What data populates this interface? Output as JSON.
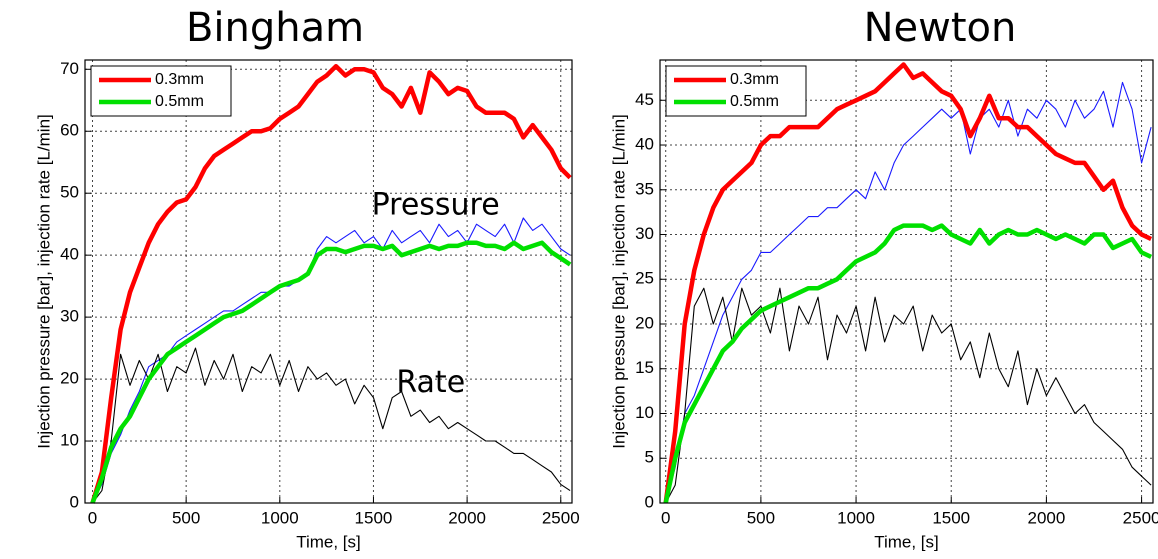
{
  "chart_data": [
    {
      "type": "line",
      "title": "Bingham",
      "xlabel": "Time, [s]",
      "ylabel": "Injection pressure [bar], injection rate [L/min]",
      "xlim": [
        -40,
        2560
      ],
      "ylim": [
        0,
        71.5
      ],
      "xticks": [
        0,
        500,
        1000,
        1500,
        2000,
        2500
      ],
      "yticks": [
        0,
        10,
        20,
        30,
        40,
        50,
        60,
        70
      ],
      "grid": true,
      "legend": "upper-left",
      "x": [
        0,
        50,
        100,
        150,
        200,
        250,
        300,
        350,
        400,
        450,
        500,
        550,
        600,
        650,
        700,
        750,
        800,
        850,
        900,
        950,
        1000,
        1050,
        1100,
        1150,
        1200,
        1250,
        1300,
        1350,
        1400,
        1450,
        1500,
        1550,
        1600,
        1650,
        1700,
        1750,
        1800,
        1850,
        1900,
        1950,
        2000,
        2050,
        2100,
        2150,
        2200,
        2250,
        2300,
        2350,
        2400,
        2450,
        2500,
        2550
      ],
      "series": [
        {
          "name": "0.3mm",
          "color": "#ff0000",
          "values": [
            0,
            5,
            17,
            28,
            34,
            38,
            42,
            45,
            47,
            48.5,
            49,
            51,
            54,
            56,
            57,
            58,
            59,
            60,
            60,
            60.5,
            62,
            63,
            64,
            66,
            68,
            69,
            70.5,
            69,
            70,
            70,
            69.5,
            67,
            66,
            64,
            67,
            63,
            69.5,
            68,
            66,
            67,
            66.5,
            64,
            63,
            63,
            63,
            62,
            59,
            61,
            59,
            57,
            54,
            52.5
          ]
        },
        {
          "name": "0.5mm",
          "color": "#00e000",
          "values": [
            0,
            4,
            9,
            12,
            14,
            17,
            20,
            22,
            24,
            25,
            26,
            27,
            28,
            29,
            30,
            30.5,
            31,
            32,
            33,
            34,
            35,
            35.5,
            36,
            37,
            40,
            41,
            41,
            40.5,
            41,
            41.5,
            41.5,
            41,
            41.5,
            40,
            40.5,
            41,
            41.5,
            41,
            41.5,
            41.5,
            42,
            42,
            41.5,
            41.5,
            41,
            42,
            41,
            41.5,
            42,
            40.5,
            39.5,
            38.5
          ]
        },
        {
          "color": "#1a1aff",
          "values": [
            0,
            3,
            8,
            11,
            15,
            18,
            22,
            23,
            24,
            26,
            27,
            28,
            29,
            30,
            31,
            31,
            32,
            33,
            34,
            34,
            35,
            35,
            36,
            37,
            41,
            43,
            42,
            43,
            44,
            42,
            43,
            41,
            44,
            42,
            43,
            44,
            42,
            45,
            43,
            44,
            42,
            45,
            44,
            43,
            45,
            42,
            46,
            44,
            45,
            43,
            41,
            40
          ]
        },
        {
          "color": "#000000",
          "values": [
            0,
            2,
            10,
            24,
            19,
            23,
            20,
            24,
            18,
            22,
            21,
            25,
            19,
            23,
            20,
            24,
            18,
            22,
            21,
            24,
            19,
            23,
            18,
            22,
            20,
            21,
            19,
            20,
            16,
            19,
            17,
            12,
            17,
            18,
            14,
            15,
            13,
            14,
            12,
            13,
            12,
            11,
            10,
            10,
            9,
            8,
            8,
            7,
            6,
            5,
            3,
            2
          ]
        }
      ],
      "annotations": [
        {
          "text": "Pressure",
          "color": "#1a1aff"
        },
        {
          "text": "Rate",
          "color": "#000000"
        }
      ]
    },
    {
      "type": "line",
      "title": "Newton",
      "xlabel": "Time, [s]",
      "ylabel": "Injection pressure [bar], injection rate [L/min]",
      "xlim": [
        -30,
        2560
      ],
      "ylim": [
        0,
        49.5
      ],
      "xticks": [
        0,
        500,
        1000,
        1500,
        2000,
        2500
      ],
      "yticks": [
        0,
        5,
        10,
        15,
        20,
        25,
        30,
        35,
        40,
        45
      ],
      "grid": true,
      "legend": "upper-left",
      "x": [
        0,
        50,
        100,
        150,
        200,
        250,
        300,
        350,
        400,
        450,
        500,
        550,
        600,
        650,
        700,
        750,
        800,
        850,
        900,
        950,
        1000,
        1050,
        1100,
        1150,
        1200,
        1250,
        1300,
        1350,
        1400,
        1450,
        1500,
        1550,
        1600,
        1650,
        1700,
        1750,
        1800,
        1850,
        1900,
        1950,
        2000,
        2050,
        2100,
        2150,
        2200,
        2250,
        2300,
        2350,
        2400,
        2450,
        2500,
        2550
      ],
      "series": [
        {
          "name": "0.3mm",
          "color": "#ff0000",
          "values": [
            0,
            8,
            20,
            26,
            30,
            33,
            35,
            36,
            37,
            38,
            40,
            41,
            41,
            42,
            42,
            42,
            42,
            43,
            44,
            44.5,
            45,
            45.5,
            46,
            47,
            48,
            49,
            47.5,
            48,
            47,
            46,
            45.5,
            44,
            41,
            43,
            45.5,
            43,
            43,
            42,
            42,
            41,
            40,
            39,
            38.5,
            38,
            38,
            36.5,
            35,
            36,
            33,
            31,
            30,
            29.5
          ]
        },
        {
          "name": "0.5mm",
          "color": "#00e000",
          "values": [
            0,
            5,
            9,
            11,
            13,
            15,
            17,
            18,
            19.5,
            20.5,
            21.5,
            22,
            22.5,
            23,
            23.5,
            24,
            24,
            24.5,
            25,
            26,
            27,
            27.5,
            28,
            29,
            30.5,
            31,
            31,
            31,
            30.5,
            31,
            30,
            29.5,
            29,
            30.5,
            29,
            30,
            30.5,
            30,
            30,
            30.5,
            30,
            29.5,
            30,
            29.5,
            29,
            30,
            30,
            28.5,
            29,
            29.5,
            28,
            27.5
          ]
        },
        {
          "color": "#1a1aff",
          "values": [
            0,
            4,
            10,
            12,
            15,
            18,
            21,
            23,
            25,
            26,
            28,
            28,
            29,
            30,
            31,
            32,
            32,
            33,
            33,
            34,
            35,
            34,
            37,
            35,
            38,
            40,
            41,
            42,
            43,
            44,
            43,
            44,
            39,
            43,
            44,
            42,
            45,
            41,
            44,
            43,
            45,
            44,
            42,
            45,
            43,
            44,
            46,
            42,
            47,
            44,
            38,
            42
          ]
        },
        {
          "color": "#000000",
          "values": [
            0,
            2,
            10,
            22,
            24,
            20,
            23,
            18,
            24,
            21,
            22,
            19,
            24,
            17,
            22,
            20,
            23,
            16,
            21,
            19,
            22,
            17,
            23,
            18,
            21,
            20,
            22,
            17,
            21,
            19,
            20,
            16,
            18,
            14,
            19,
            15,
            13,
            17,
            11,
            15,
            12,
            14,
            12,
            10,
            11,
            9,
            8,
            7,
            6,
            4,
            3,
            2
          ]
        }
      ]
    }
  ]
}
